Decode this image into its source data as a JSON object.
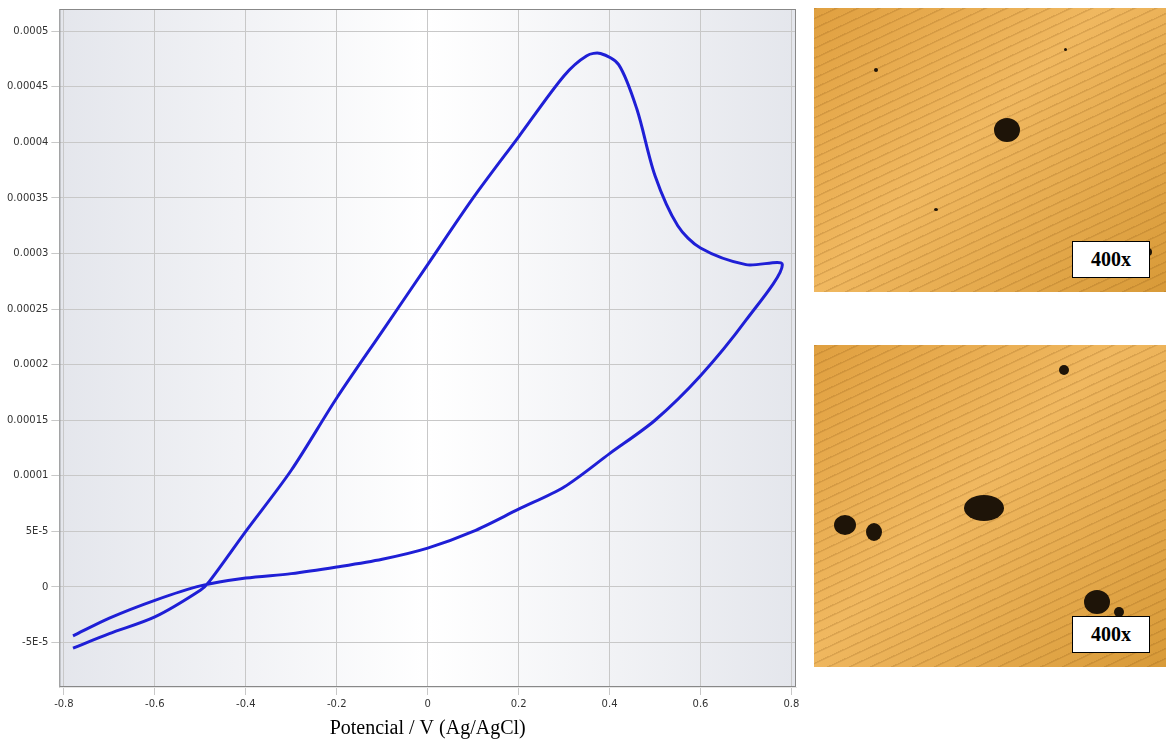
{
  "chart_data": {
    "type": "line",
    "x_label": "Potencial / V (Ag/AgCl)",
    "x": [
      -0.78,
      -0.7,
      -0.6,
      -0.5,
      -0.48,
      -0.4,
      -0.3,
      -0.2,
      -0.1,
      0,
      0.1,
      0.2,
      0.3,
      0.35,
      0.38,
      0.42,
      0.46,
      0.5,
      0.55,
      0.6,
      0.7,
      0.78,
      0.7,
      0.6,
      0.5,
      0.4,
      0.3,
      0.2,
      0.1,
      0,
      -0.1,
      -0.2,
      -0.3,
      -0.4,
      -0.5,
      -0.6,
      -0.7,
      -0.78
    ],
    "values": [
      -5.5e-05,
      -4.2e-05,
      -2.7e-05,
      -3e-06,
      5e-06,
      5e-05,
      0.000105,
      0.00017,
      0.00023,
      0.00029,
      0.00035,
      0.000405,
      0.00046,
      0.000478,
      0.00048,
      0.00047,
      0.00043,
      0.00037,
      0.000325,
      0.000305,
      0.00029,
      0.00029,
      0.00024,
      0.00019,
      0.00015,
      0.00012,
      9e-05,
      7e-05,
      5e-05,
      3.5e-05,
      2.5e-05,
      1.8e-05,
      1.2e-05,
      8e-06,
      1e-06,
      -1.2e-05,
      -2.8e-05,
      -4.4e-05
    ],
    "color": "#1f1fd6",
    "xlim": [
      -0.81,
      0.81
    ],
    "xticks": [
      -0.8,
      -0.6,
      -0.4,
      -0.2,
      0,
      0.2,
      0.4,
      0.6,
      0.8
    ],
    "ylim": [
      -9e-05,
      0.00052
    ],
    "yticks": [
      {
        "value": -5e-05,
        "label": "-5E-5"
      },
      0,
      {
        "value": 5e-05,
        "label": "5E-5"
      },
      0.0001,
      0.00015,
      0.0002,
      0.00025,
      0.0003,
      0.00035,
      0.0004,
      0.00045,
      0.0005
    ],
    "grid": true
  },
  "images": [
    {
      "caption": "400x"
    },
    {
      "caption": "400x"
    }
  ]
}
